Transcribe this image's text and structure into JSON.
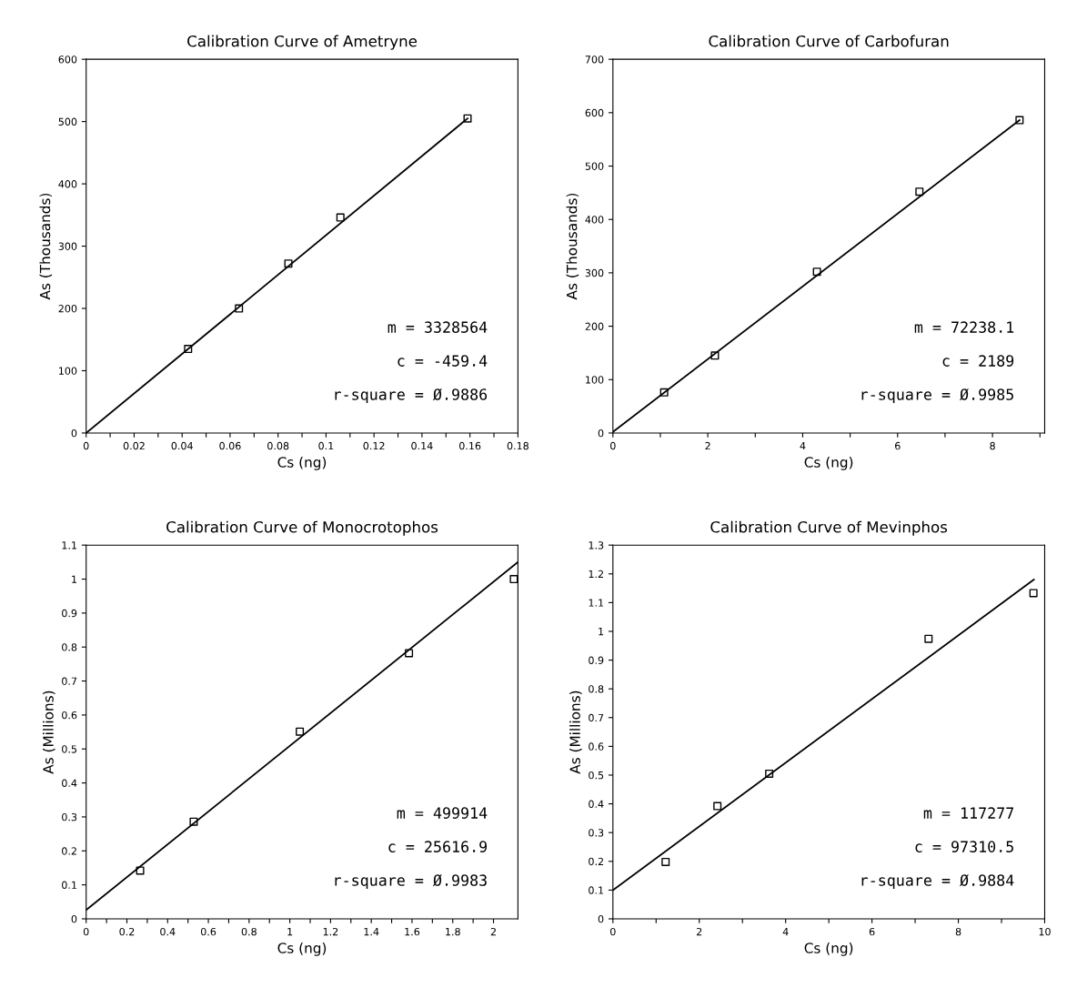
{
  "chart_data": [
    {
      "type": "scatter",
      "title": "Calibration Curve of Ametryne",
      "xlabel": "Cs (ng)",
      "ylabel": "As (Thousands)",
      "xlim": [
        0,
        0.18
      ],
      "ylim": [
        0,
        600
      ],
      "xticks": [
        0,
        {
          "value": 0.01,
          "label": null
        },
        0.02,
        {
          "value": 0.03,
          "label": null
        },
        0.04,
        {
          "value": 0.05,
          "label": null
        },
        0.06,
        {
          "value": 0.07,
          "label": null
        },
        0.08,
        {
          "value": 0.09,
          "label": null
        },
        0.1,
        {
          "value": 0.11,
          "label": null
        },
        0.12,
        {
          "value": 0.13,
          "label": null
        },
        0.14,
        {
          "value": 0.15,
          "label": null
        },
        0.16,
        {
          "value": 0.17,
          "label": null
        },
        0.18
      ],
      "yticks": [
        0,
        100,
        200,
        300,
        400,
        500,
        600
      ],
      "grid": false,
      "series": [
        {
          "color": "#000000",
          "marker": "square",
          "x": [
            0.0425,
            0.0637,
            0.0843,
            0.106,
            0.159
          ],
          "values": [
            135,
            200,
            272,
            346,
            505
          ]
        },
        {
          "type": "line",
          "color": "#000000",
          "marker": "none",
          "line_style": "solid",
          "x": [
            0,
            0.159
          ],
          "values": [
            0,
            505
          ]
        }
      ],
      "annotations": [
        "m = 3328564",
        "c = -459.4",
        "r-square = Ø.9886"
      ]
    },
    {
      "type": "scatter",
      "title": "Calibration Curve of Carbofuran",
      "xlabel": "Cs (ng)",
      "ylabel": "As (Thousands)",
      "xlim": [
        0,
        9.1
      ],
      "ylim": [
        0,
        700
      ],
      "xticks": [
        0,
        {
          "value": 1,
          "label": null
        },
        2,
        {
          "value": 3,
          "label": null
        },
        4,
        {
          "value": 5,
          "label": null
        },
        6,
        {
          "value": 7,
          "label": null
        },
        8,
        {
          "value": 9,
          "label": null
        }
      ],
      "yticks": [
        0,
        100,
        200,
        300,
        400,
        500,
        600,
        700
      ],
      "grid": false,
      "series": [
        {
          "color": "#000000",
          "marker": "square",
          "x": [
            1.08,
            2.15,
            4.3,
            6.46,
            8.57
          ],
          "values": [
            76,
            145,
            302,
            452,
            586
          ]
        },
        {
          "type": "line",
          "color": "#000000",
          "marker": "none",
          "line_style": "solid",
          "x": [
            0,
            8.57
          ],
          "values": [
            2,
            586
          ]
        }
      ],
      "annotations": [
        "m = 72238.1",
        "c = 2189",
        "r-square = Ø.9985"
      ]
    },
    {
      "type": "scatter",
      "title": "Calibration Curve of Monocrotophos",
      "xlabel": "Cs (ng)",
      "ylabel": "As (Millions)",
      "xlim": [
        0,
        2.12
      ],
      "ylim": [
        0,
        1.1
      ],
      "xticks": [
        0,
        {
          "value": 0.1,
          "label": null
        },
        0.2,
        {
          "value": 0.3,
          "label": null
        },
        0.4,
        {
          "value": 0.5,
          "label": null
        },
        0.6,
        {
          "value": 0.7,
          "label": null
        },
        0.8,
        {
          "value": 0.9,
          "label": null
        },
        1,
        {
          "value": 1.1,
          "label": null
        },
        1.2,
        {
          "value": 1.3,
          "label": null
        },
        1.4,
        {
          "value": 1.5,
          "label": null
        },
        1.6,
        {
          "value": 1.7,
          "label": null
        },
        1.8,
        {
          "value": 1.9,
          "label": null
        },
        2
      ],
      "yticks": [
        0,
        0.1,
        0.2,
        0.3,
        0.4,
        0.5,
        0.6,
        0.7,
        0.8,
        0.9,
        1,
        1.1
      ],
      "grid": false,
      "series": [
        {
          "color": "#000000",
          "marker": "square",
          "x": [
            0.265,
            0.528,
            1.049,
            1.585,
            2.1
          ],
          "values": [
            0.142,
            0.286,
            0.551,
            0.782,
            1.0
          ]
        },
        {
          "type": "line",
          "color": "#000000",
          "marker": "none",
          "line_style": "solid",
          "x": [
            0,
            2.12
          ],
          "values": [
            0.026,
            1.05
          ]
        }
      ],
      "annotations": [
        "m = 499914",
        "c = 25616.9",
        "r-square = Ø.9983"
      ]
    },
    {
      "type": "scatter",
      "title": "Calibration Curve of Mevinphos",
      "xlabel": "Cs (ng)",
      "ylabel": "As (Millions)",
      "xlim": [
        0,
        10
      ],
      "ylim": [
        0,
        1.3
      ],
      "xticks": [
        0,
        {
          "value": 1,
          "label": null
        },
        2,
        {
          "value": 3,
          "label": null
        },
        4,
        {
          "value": 5,
          "label": null
        },
        6,
        {
          "value": 7,
          "label": null
        },
        8,
        {
          "value": 9,
          "label": null
        },
        10
      ],
      "yticks": [
        0,
        0.1,
        0.2,
        0.3,
        0.4,
        0.5,
        0.6,
        0.7,
        0.8,
        0.9,
        1,
        1.1,
        1.2,
        1.3
      ],
      "grid": false,
      "series": [
        {
          "color": "#000000",
          "marker": "square",
          "x": [
            1.22,
            2.42,
            3.62,
            7.31,
            9.74
          ],
          "values": [
            0.198,
            0.392,
            0.505,
            0.974,
            1.133
          ]
        },
        {
          "type": "line",
          "color": "#000000",
          "marker": "none",
          "line_style": "solid",
          "x": [
            0,
            9.75
          ],
          "values": [
            0.1,
            1.18
          ]
        }
      ],
      "annotations": [
        "m = 117277",
        "c = 97310.5",
        "r-square = Ø.9884"
      ]
    }
  ]
}
